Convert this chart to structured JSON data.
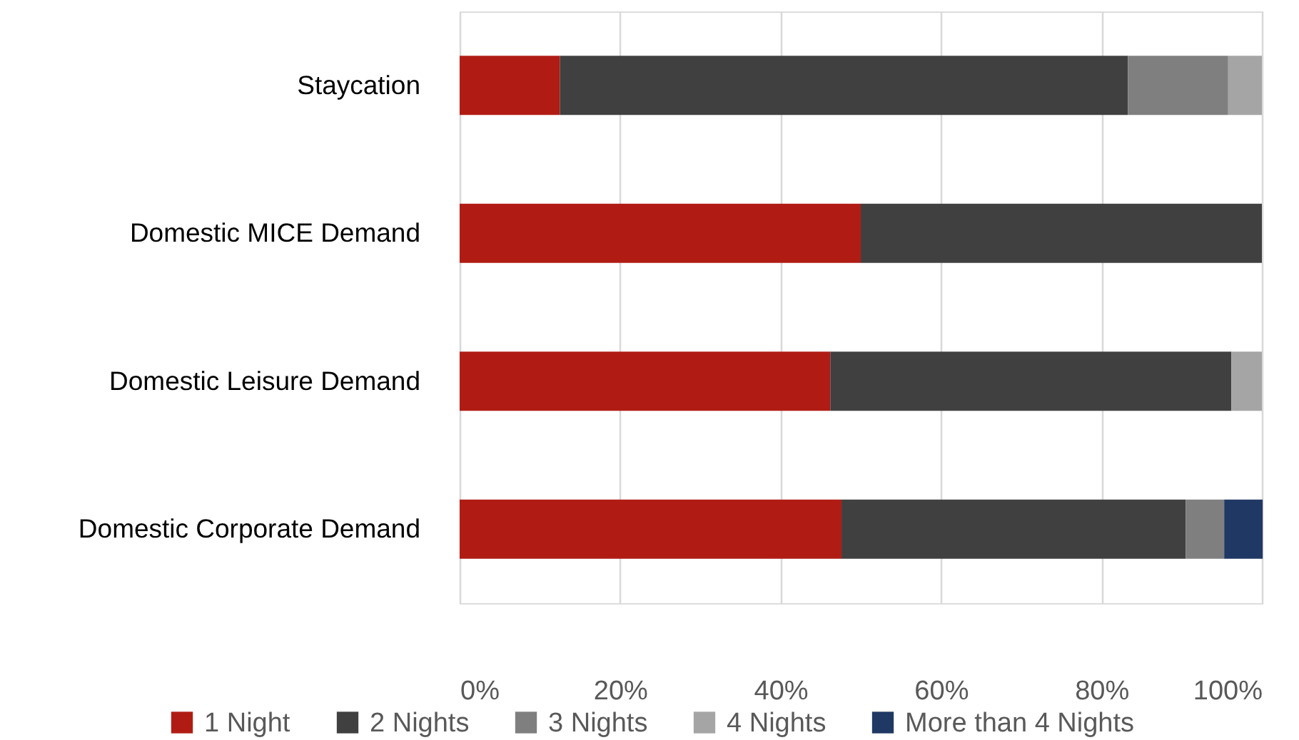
{
  "chart_data": {
    "type": "bar",
    "orientation": "horizontal",
    "stacked": true,
    "categories": [
      "Staycation",
      "Domestic MICE Demand",
      "Domestic Leisure Demand",
      "Domestic Corporate Demand"
    ],
    "series": [
      {
        "name": "1 Night",
        "color": "#b01c14",
        "values": [
          12.5,
          50.0,
          46.2,
          47.6
        ]
      },
      {
        "name": "2 Nights",
        "color": "#404040",
        "values": [
          70.8,
          50.0,
          50.0,
          42.9
        ]
      },
      {
        "name": "3 Nights",
        "color": "#7f7f7f",
        "values": [
          12.5,
          null,
          null,
          4.8
        ]
      },
      {
        "name": "4 Nights",
        "color": "#a5a5a5",
        "values": [
          4.2,
          null,
          3.8,
          null
        ]
      },
      {
        "name": "More than 4 Nights",
        "color": "#203864",
        "values": [
          null,
          null,
          null,
          4.8
        ]
      }
    ],
    "xlim": [
      0,
      100
    ],
    "xticks": [
      {
        "value": 0,
        "label": "0%"
      },
      {
        "value": 20,
        "label": "20%"
      },
      {
        "value": 40,
        "label": "40%"
      },
      {
        "value": 60,
        "label": "60%"
      },
      {
        "value": 80,
        "label": "80%"
      },
      {
        "value": 100,
        "label": "100%"
      }
    ],
    "grid": "x",
    "legend": "bottom"
  }
}
